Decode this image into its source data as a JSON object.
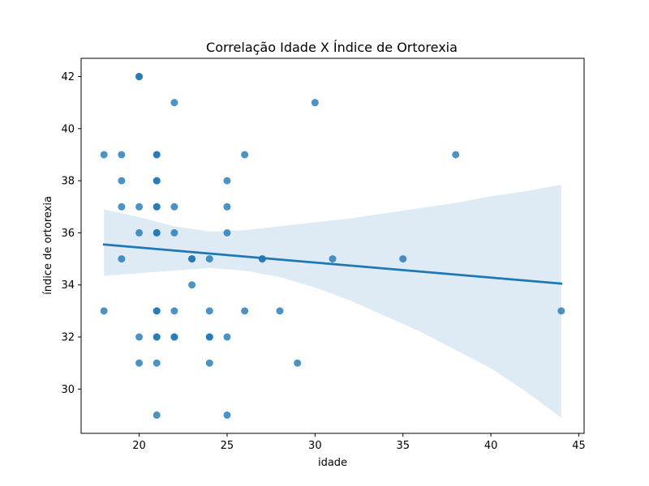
{
  "chart_data": {
    "type": "scatter",
    "title": "Correlação Idade X Índice de Ortorexia",
    "xlabel": "idade",
    "ylabel": "índice de ortorexia",
    "xlim": [
      16.7,
      45.3
    ],
    "ylim": [
      28.3,
      42.7
    ],
    "xticks": [
      "20",
      "25",
      "30",
      "35",
      "40",
      "45"
    ],
    "yticks": [
      "30",
      "32",
      "34",
      "36",
      "38",
      "40",
      "42"
    ],
    "grid": false,
    "colors": {
      "points": "#1f77b4",
      "line": "#1f77b4",
      "band": "#1f77b4"
    },
    "points": [
      {
        "x": 18,
        "y": 39
      },
      {
        "x": 18,
        "y": 33
      },
      {
        "x": 19,
        "y": 39
      },
      {
        "x": 19,
        "y": 38
      },
      {
        "x": 19,
        "y": 37
      },
      {
        "x": 19,
        "y": 35
      },
      {
        "x": 20,
        "y": 42
      },
      {
        "x": 20,
        "y": 42
      },
      {
        "x": 20,
        "y": 37
      },
      {
        "x": 20,
        "y": 36
      },
      {
        "x": 20,
        "y": 32
      },
      {
        "x": 20,
        "y": 31
      },
      {
        "x": 21,
        "y": 39
      },
      {
        "x": 21,
        "y": 39
      },
      {
        "x": 21,
        "y": 38
      },
      {
        "x": 21,
        "y": 38
      },
      {
        "x": 21,
        "y": 37
      },
      {
        "x": 21,
        "y": 37
      },
      {
        "x": 21,
        "y": 36
      },
      {
        "x": 21,
        "y": 36
      },
      {
        "x": 21,
        "y": 33
      },
      {
        "x": 21,
        "y": 33
      },
      {
        "x": 21,
        "y": 32
      },
      {
        "x": 21,
        "y": 32
      },
      {
        "x": 21,
        "y": 31
      },
      {
        "x": 21,
        "y": 29
      },
      {
        "x": 22,
        "y": 41
      },
      {
        "x": 22,
        "y": 37
      },
      {
        "x": 22,
        "y": 36
      },
      {
        "x": 22,
        "y": 33
      },
      {
        "x": 22,
        "y": 32
      },
      {
        "x": 22,
        "y": 32
      },
      {
        "x": 23,
        "y": 35
      },
      {
        "x": 23,
        "y": 35
      },
      {
        "x": 23,
        "y": 34
      },
      {
        "x": 24,
        "y": 35
      },
      {
        "x": 24,
        "y": 33
      },
      {
        "x": 24,
        "y": 32
      },
      {
        "x": 24,
        "y": 32
      },
      {
        "x": 24,
        "y": 31
      },
      {
        "x": 25,
        "y": 38
      },
      {
        "x": 25,
        "y": 37
      },
      {
        "x": 25,
        "y": 36
      },
      {
        "x": 25,
        "y": 32
      },
      {
        "x": 25,
        "y": 29
      },
      {
        "x": 26,
        "y": 39
      },
      {
        "x": 26,
        "y": 33
      },
      {
        "x": 27,
        "y": 35
      },
      {
        "x": 27,
        "y": 35
      },
      {
        "x": 28,
        "y": 33
      },
      {
        "x": 29,
        "y": 31
      },
      {
        "x": 30,
        "y": 41
      },
      {
        "x": 31,
        "y": 35
      },
      {
        "x": 35,
        "y": 35
      },
      {
        "x": 38,
        "y": 39
      },
      {
        "x": 44,
        "y": 33
      }
    ],
    "regression": {
      "x": [
        18,
        44
      ],
      "y": [
        35.55,
        34.05
      ]
    },
    "confidence_band": {
      "x": [
        18,
        20,
        22,
        24,
        26,
        28,
        30,
        32,
        34,
        36,
        38,
        40,
        42,
        44
      ],
      "upper": [
        36.9,
        36.6,
        36.25,
        36.05,
        36.1,
        36.25,
        36.4,
        36.55,
        36.75,
        36.95,
        37.15,
        37.4,
        37.6,
        37.85
      ],
      "lower": [
        34.35,
        34.45,
        34.55,
        34.65,
        34.55,
        34.3,
        33.9,
        33.4,
        32.8,
        32.2,
        31.5,
        30.8,
        29.9,
        28.9
      ]
    }
  }
}
